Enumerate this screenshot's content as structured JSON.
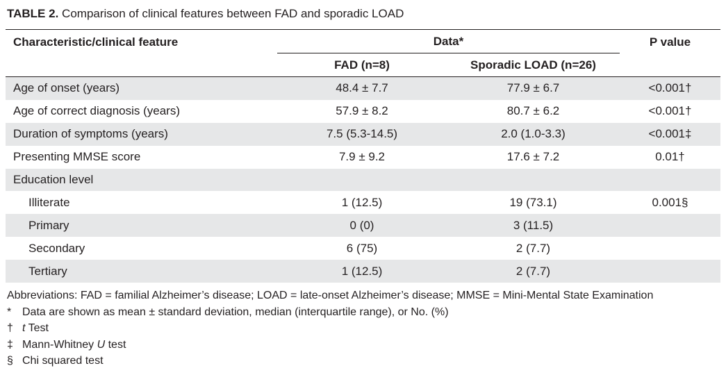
{
  "caption": {
    "label": "TABLE 2.",
    "text": "Comparison of clinical features between FAD and sporadic LOAD"
  },
  "header": {
    "characteristic": "Characteristic/clinical feature",
    "data_group": "Data*",
    "p_value": "P value",
    "fad": "FAD (n=8)",
    "sporadic": "Sporadic LOAD (n=26)"
  },
  "rows": [
    {
      "label": "Age of onset (years)",
      "fad": "48.4 ± 7.7",
      "sporadic": "77.9 ± 6.7",
      "p": "<0.001†"
    },
    {
      "label": "Age of correct diagnosis (years)",
      "fad": "57.9 ± 8.2",
      "sporadic": "80.7 ± 6.2",
      "p": "<0.001†"
    },
    {
      "label": "Duration of symptoms (years)",
      "fad": "7.5 (5.3-14.5)",
      "sporadic": "2.0 (1.0-3.3)",
      "p": "<0.001‡"
    },
    {
      "label": "Presenting MMSE score",
      "fad": "7.9 ± 9.2",
      "sporadic": "17.6 ± 7.2",
      "p": "0.01†"
    },
    {
      "label": "Education level",
      "fad": "",
      "sporadic": "",
      "p": ""
    },
    {
      "label": "Illiterate",
      "fad": "1 (12.5)",
      "sporadic": "19 (73.1)",
      "p": "0.001§"
    },
    {
      "label": "Primary",
      "fad": "0 (0)",
      "sporadic": "3 (11.5)",
      "p": ""
    },
    {
      "label": "Secondary",
      "fad": "6 (75)",
      "sporadic": "2 (7.7)",
      "p": ""
    },
    {
      "label": "Tertiary",
      "fad": "1 (12.5)",
      "sporadic": "2 (7.7)",
      "p": ""
    }
  ],
  "notes": {
    "abbreviations": "Abbreviations: FAD = familial Alzheimer’s disease; LOAD = late-onset Alzheimer’s disease; MMSE = Mini-Mental State Examination",
    "star_symbol": "*",
    "star_text": "Data are shown as mean ± standard deviation, median (interquartile range), or No. (%)",
    "dagger_symbol": "†",
    "dagger_italic": "t",
    "dagger_text": " Test",
    "ddagger_symbol": "‡",
    "ddagger_pre": "Mann-Whitney ",
    "ddagger_italic": "U",
    "ddagger_post": " test",
    "section_symbol": "§",
    "section_text": "Chi squared test"
  }
}
